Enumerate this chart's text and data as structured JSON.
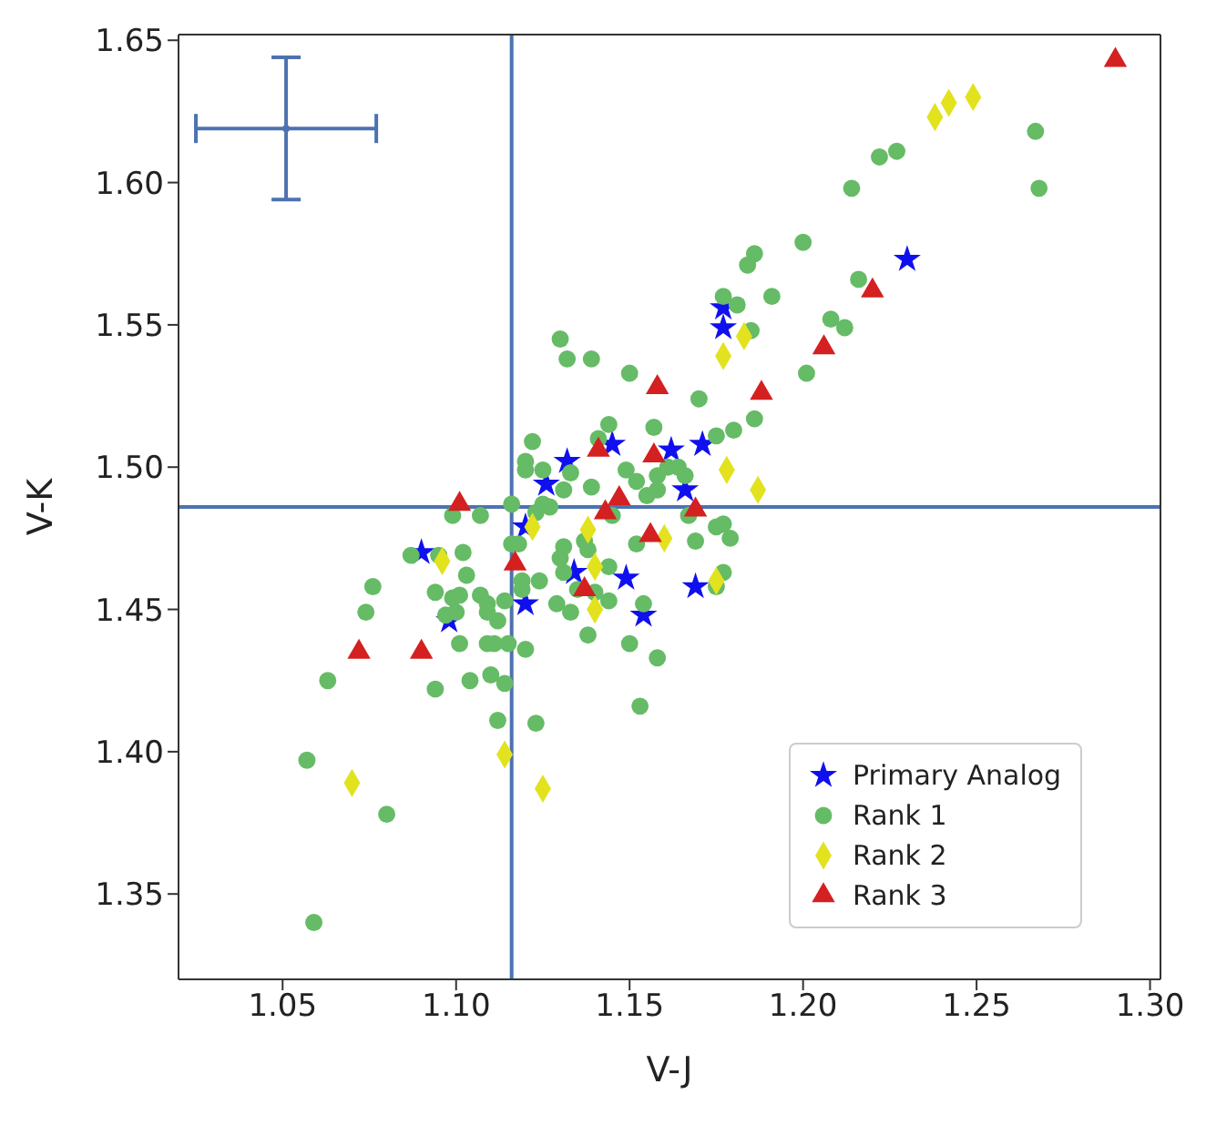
{
  "chart_data": {
    "type": "scatter",
    "xlabel": "V-J",
    "ylabel": "V-K",
    "xlim": [
      1.02,
      1.303
    ],
    "ylim": [
      1.32,
      1.652
    ],
    "xticks": [
      1.05,
      {
        "value": 1.1,
        "label": "1.10"
      },
      1.15,
      {
        "value": 1.2,
        "label": "1.20"
      },
      1.25,
      {
        "value": 1.3,
        "label": "1.30"
      }
    ],
    "yticks": [
      1.35,
      {
        "value": 1.4,
        "label": "1.40"
      },
      1.45,
      {
        "value": 1.5,
        "label": "1.50"
      },
      1.55,
      {
        "value": 1.6,
        "label": "1.60"
      },
      1.65
    ],
    "grid": false,
    "legend": "bottom right",
    "ref_lines": [
      {
        "axis": "x",
        "value": 1.116,
        "color": "#4c72b0"
      },
      {
        "axis": "y",
        "value": 1.486,
        "color": "#4c72b0"
      }
    ],
    "series": [
      {
        "name": "Primary Analog",
        "marker": "star",
        "color": "#1010ee",
        "x": [
          1.23,
          1.177,
          1.177,
          1.171,
          1.145,
          1.162,
          1.132,
          1.126,
          1.166,
          1.12,
          1.134,
          1.149,
          1.169,
          1.12,
          1.154,
          1.09,
          1.098
        ],
        "values": [
          1.573,
          1.556,
          1.549,
          1.508,
          1.508,
          1.506,
          1.502,
          1.494,
          1.492,
          1.479,
          1.463,
          1.461,
          1.458,
          1.452,
          1.448,
          1.47,
          1.446
        ]
      },
      {
        "name": "Rank 1",
        "marker": "circle",
        "color": "#66bb66",
        "x": [
          1.267,
          1.268,
          1.222,
          1.227,
          1.214,
          1.2,
          1.186,
          1.184,
          1.191,
          1.177,
          1.181,
          1.185,
          1.216,
          1.208,
          1.212,
          1.201,
          1.186,
          1.18,
          1.175,
          1.17,
          1.13,
          1.132,
          1.139,
          1.15,
          1.144,
          1.157,
          1.122,
          1.141,
          1.12,
          1.12,
          1.125,
          1.133,
          1.131,
          1.139,
          1.149,
          1.152,
          1.155,
          1.158,
          1.161,
          1.164,
          1.166,
          1.158,
          1.116,
          1.125,
          1.127,
          1.123,
          1.145,
          1.167,
          1.175,
          1.177,
          1.179,
          1.169,
          1.152,
          1.137,
          1.138,
          1.131,
          1.116,
          1.118,
          1.13,
          1.144,
          1.131,
          1.119,
          1.124,
          1.135,
          1.14,
          1.144,
          1.154,
          1.177,
          1.175,
          1.129,
          1.133,
          1.138,
          1.15,
          1.158,
          1.12,
          1.153,
          1.123,
          1.114,
          1.115,
          1.114,
          1.107,
          1.099,
          1.087,
          1.095,
          1.102,
          1.103,
          1.076,
          1.094,
          1.099,
          1.101,
          1.107,
          1.109,
          1.119,
          1.074,
          1.097,
          1.1,
          1.109,
          1.112,
          1.101,
          1.109,
          1.111,
          1.063,
          1.094,
          1.104,
          1.11,
          1.112,
          1.057,
          1.08,
          1.059
        ],
        "values": [
          1.618,
          1.598,
          1.609,
          1.611,
          1.598,
          1.579,
          1.575,
          1.571,
          1.56,
          1.56,
          1.557,
          1.548,
          1.566,
          1.552,
          1.549,
          1.533,
          1.517,
          1.513,
          1.511,
          1.524,
          1.545,
          1.538,
          1.538,
          1.533,
          1.515,
          1.514,
          1.509,
          1.51,
          1.502,
          1.499,
          1.499,
          1.498,
          1.492,
          1.493,
          1.499,
          1.495,
          1.49,
          1.497,
          1.5,
          1.5,
          1.497,
          1.492,
          1.487,
          1.487,
          1.486,
          1.484,
          1.483,
          1.483,
          1.479,
          1.48,
          1.475,
          1.474,
          1.473,
          1.474,
          1.471,
          1.472,
          1.473,
          1.473,
          1.468,
          1.465,
          1.463,
          1.46,
          1.46,
          1.457,
          1.456,
          1.453,
          1.452,
          1.463,
          1.458,
          1.452,
          1.449,
          1.441,
          1.438,
          1.433,
          1.436,
          1.416,
          1.41,
          1.453,
          1.438,
          1.424,
          1.483,
          1.483,
          1.469,
          1.469,
          1.47,
          1.462,
          1.458,
          1.456,
          1.454,
          1.455,
          1.455,
          1.452,
          1.457,
          1.449,
          1.448,
          1.449,
          1.449,
          1.446,
          1.438,
          1.438,
          1.438,
          1.425,
          1.422,
          1.425,
          1.427,
          1.411,
          1.397,
          1.378,
          1.34
        ]
      },
      {
        "name": "Rank 2",
        "marker": "diamond",
        "color": "#e2e21e",
        "x": [
          1.238,
          1.242,
          1.249,
          1.177,
          1.183,
          1.178,
          1.187,
          1.138,
          1.16,
          1.122,
          1.14,
          1.175,
          1.14,
          1.114,
          1.125,
          1.096,
          1.07
        ],
        "values": [
          1.623,
          1.628,
          1.63,
          1.539,
          1.546,
          1.499,
          1.492,
          1.478,
          1.475,
          1.479,
          1.465,
          1.46,
          1.45,
          1.399,
          1.387,
          1.467,
          1.389
        ]
      },
      {
        "name": "Rank 3",
        "marker": "triangle",
        "color": "#d42020",
        "x": [
          1.29,
          1.22,
          1.206,
          1.188,
          1.158,
          1.157,
          1.141,
          1.147,
          1.143,
          1.169,
          1.156,
          1.117,
          1.137,
          1.101,
          1.072,
          1.09
        ],
        "values": [
          1.643,
          1.562,
          1.542,
          1.526,
          1.528,
          1.504,
          1.506,
          1.489,
          1.484,
          1.485,
          1.476,
          1.466,
          1.457,
          1.487,
          1.435,
          1.435
        ]
      },
      {
        "marker": "circle",
        "color": "#4c72b0",
        "x": [
          1.051
        ],
        "values": [
          1.619
        ],
        "errors": [
          0.025
        ],
        "xerrors": [
          0.026
        ]
      }
    ]
  }
}
